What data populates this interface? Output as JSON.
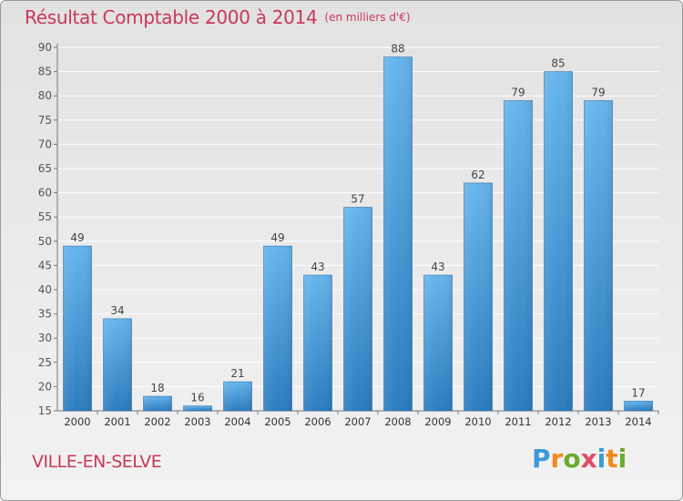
{
  "title": {
    "main": "Résultat Comptable 2000 à 2014",
    "unit": "(en milliers d'€)"
  },
  "commune": "VILLE-EN-SELVE",
  "brand": {
    "letters": [
      "P",
      "r",
      "o",
      "x",
      "i",
      "t",
      "i"
    ]
  },
  "colors": {
    "bar_light": "#63b2ea",
    "bar_dark": "#2d7fc1",
    "title": "#c8385a",
    "grid": "#ffffff",
    "axis": "#555555"
  },
  "chart_data": {
    "type": "bar",
    "categories": [
      "2000",
      "2001",
      "2002",
      "2003",
      "2004",
      "2005",
      "2006",
      "2007",
      "2008",
      "2009",
      "2010",
      "2011",
      "2012",
      "2013",
      "2014"
    ],
    "values": [
      49,
      34,
      18,
      16,
      21,
      49,
      43,
      57,
      88,
      43,
      62,
      79,
      85,
      79,
      17
    ],
    "ylim": [
      15,
      90
    ],
    "yticks": [
      15,
      20,
      25,
      30,
      35,
      40,
      45,
      50,
      55,
      60,
      65,
      70,
      75,
      80,
      85,
      90
    ],
    "grid": true,
    "title": "Résultat Comptable 2000 à 2014",
    "xlabel": "",
    "ylabel": ""
  }
}
